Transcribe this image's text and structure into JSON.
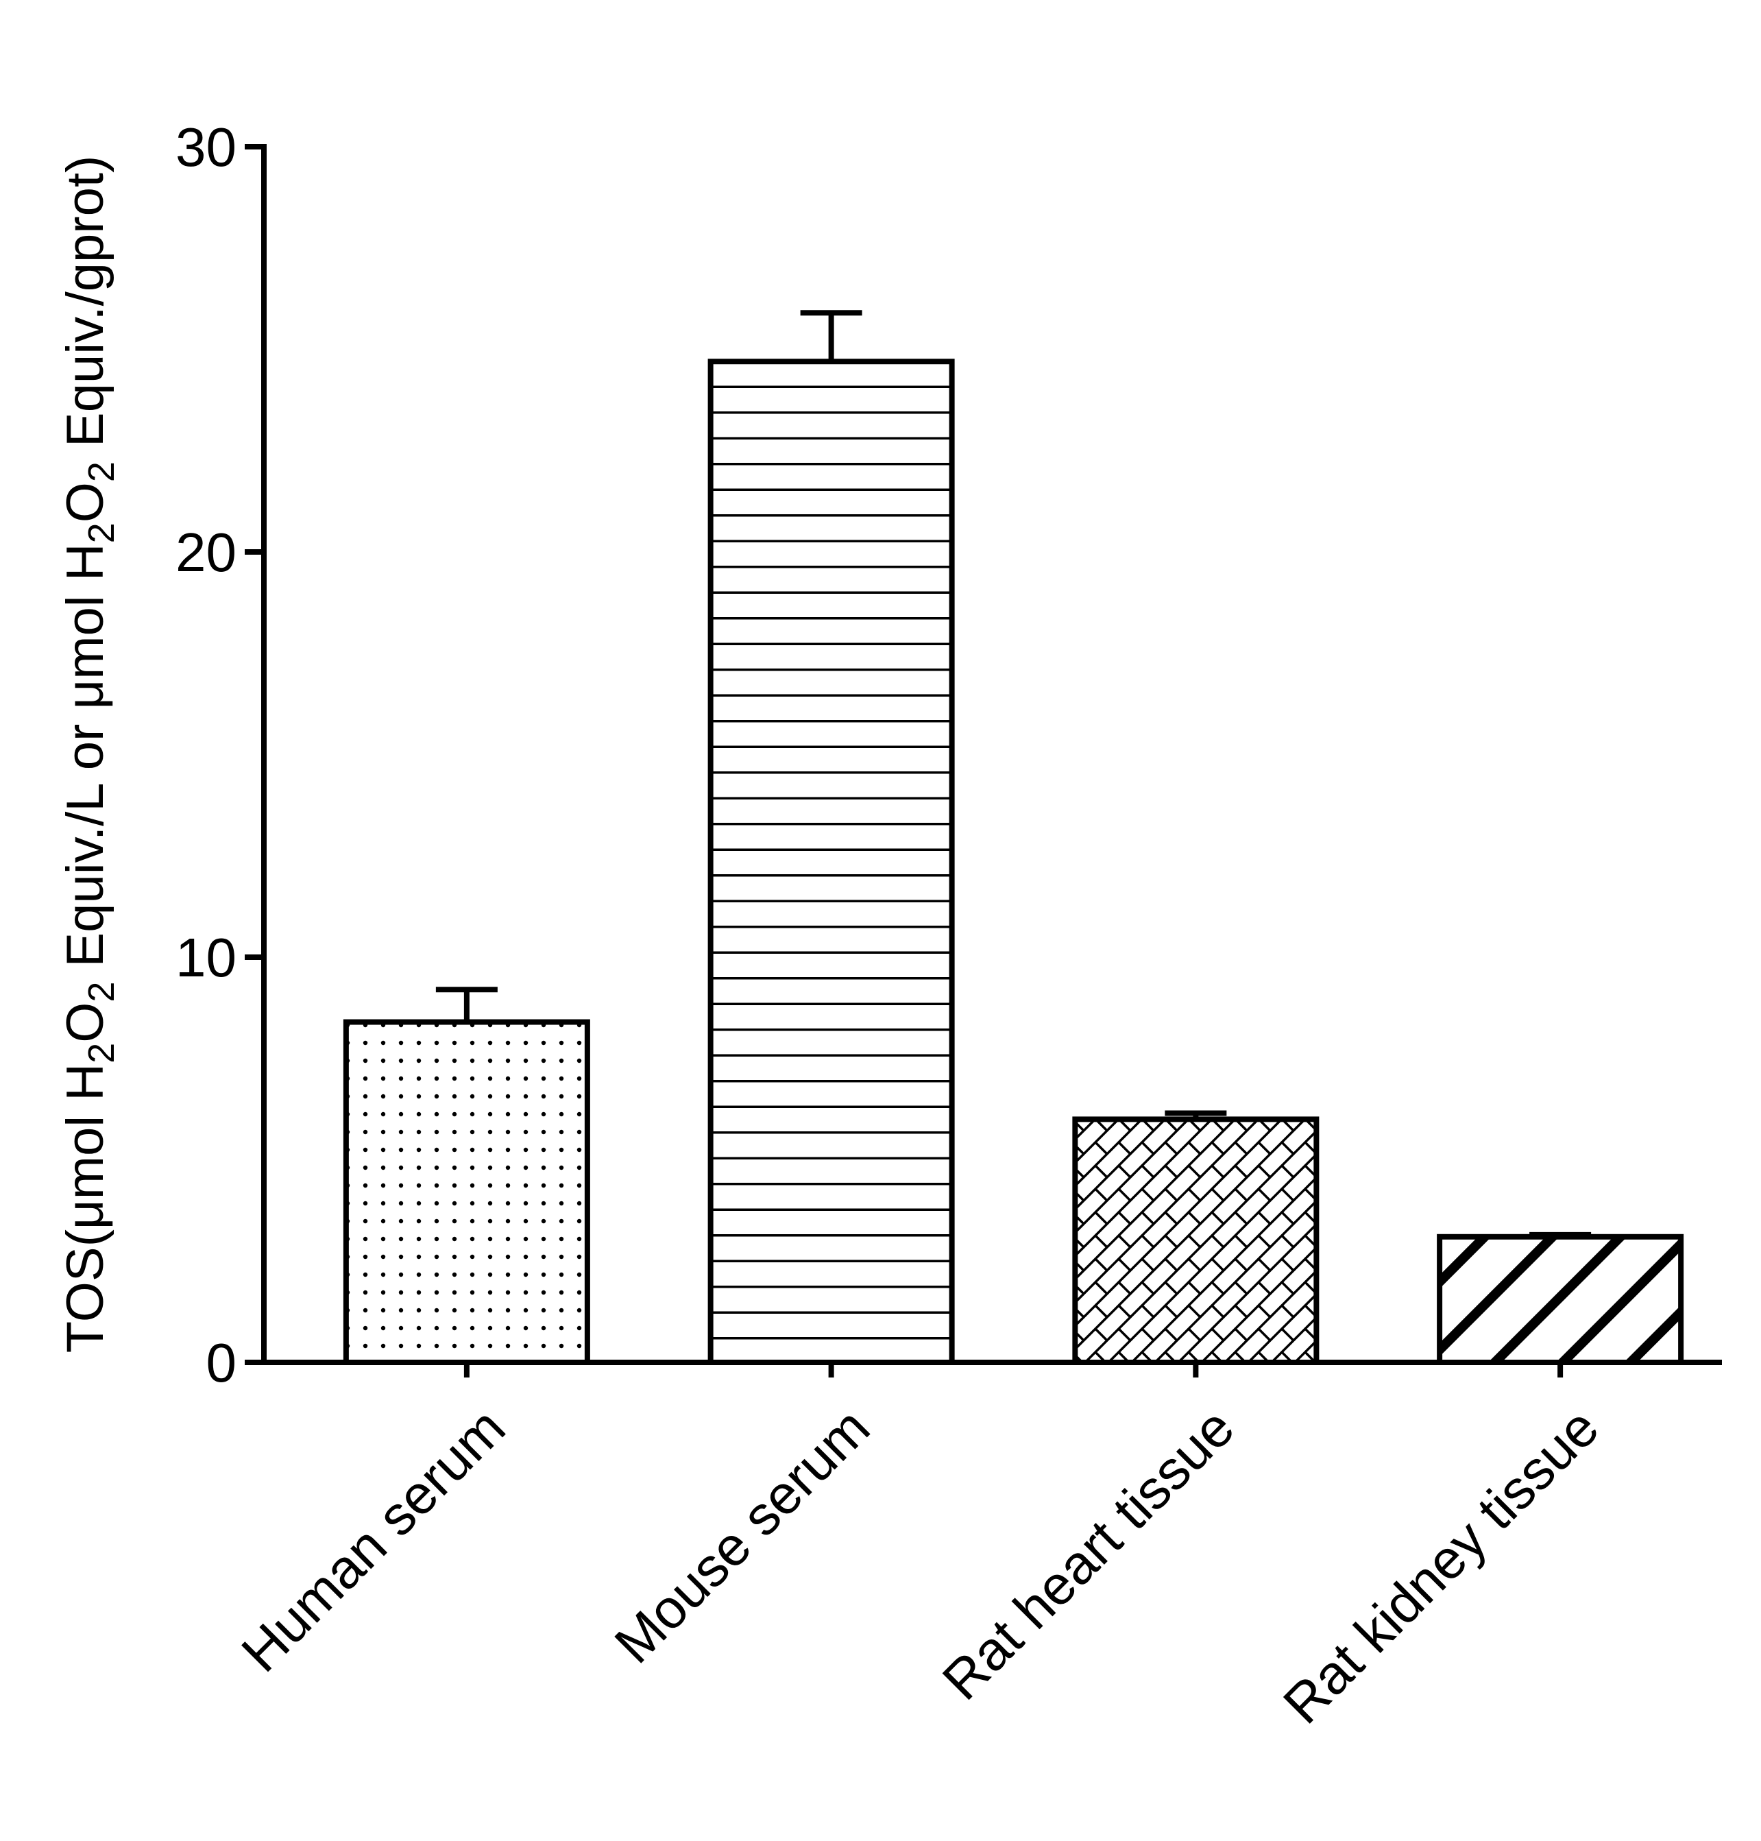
{
  "chart_data": {
    "type": "bar",
    "title": "",
    "xlabel": "",
    "ylabel": {
      "prefix": "TOS(μmol H",
      "sub1": "2",
      "mid1": "O",
      "sub2": "2",
      "mid2": " Equiv./L or μmol H",
      "sub3": "2",
      "mid3": "O",
      "sub4": "2",
      "suffix": " Equiv./gprot)"
    },
    "ylim": [
      0,
      30
    ],
    "yticks": [
      0,
      10,
      20,
      30
    ],
    "ytick_labels": [
      "0",
      "10",
      "20",
      "30"
    ],
    "categories": [
      "Human serum",
      "Mouse serum",
      "Rat heart tissue",
      "Rat kidney tissue"
    ],
    "values": [
      8.4,
      24.7,
      6.0,
      3.1
    ],
    "error_upper": [
      0.8,
      1.2,
      0.15,
      0.05
    ],
    "patterns": [
      "dots",
      "horizontal-lines",
      "crosshatch",
      "diagonal-stripes"
    ],
    "grid": false,
    "legend": "none"
  }
}
